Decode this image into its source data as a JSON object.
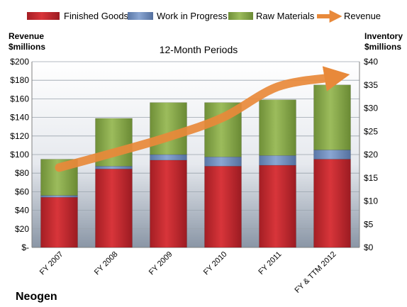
{
  "chart_data": {
    "type": "bar",
    "stacked": true,
    "title": "12-Month Periods",
    "company": "Neogen",
    "categories": [
      "FY 2007",
      "FY 2008",
      "FY 2009",
      "FY 2010",
      "FY 2011",
      "FY & TTM 2012"
    ],
    "left_axis": {
      "label_line1": "Revenue",
      "label_line2": "$millions",
      "ticks": [
        "$-",
        "$20",
        "$40",
        "$60",
        "$80",
        "$100",
        "$120",
        "$140",
        "$160",
        "$180",
        "$200"
      ],
      "ylim": [
        0,
        200
      ]
    },
    "right_axis": {
      "label_line1": "Inventory",
      "label_line2": "$millions",
      "ticks": [
        "$0",
        "$5",
        "$10",
        "$15",
        "$20",
        "$25",
        "$30",
        "$35",
        "$40"
      ],
      "ylim": [
        0,
        40
      ]
    },
    "series": [
      {
        "name": "Finished Goods",
        "axis": "right",
        "color": "#c0282e",
        "values": [
          10.8,
          16.9,
          18.8,
          17.5,
          17.7,
          19.0
        ]
      },
      {
        "name": "Work in Progress",
        "axis": "right",
        "color": "#6f8fbf",
        "values": [
          0.4,
          0.6,
          1.2,
          2.0,
          2.1,
          2.0
        ]
      },
      {
        "name": "Raw Materials",
        "axis": "right",
        "color": "#8aab4c",
        "values": [
          7.8,
          10.3,
          11.2,
          11.7,
          12.0,
          14.0
        ]
      },
      {
        "name": "Revenue",
        "axis": "left",
        "color": "#e8893a",
        "type": "line",
        "values": [
          86,
          102,
          119,
          140,
          173,
          183
        ]
      }
    ],
    "grid": true,
    "legend": "top"
  }
}
